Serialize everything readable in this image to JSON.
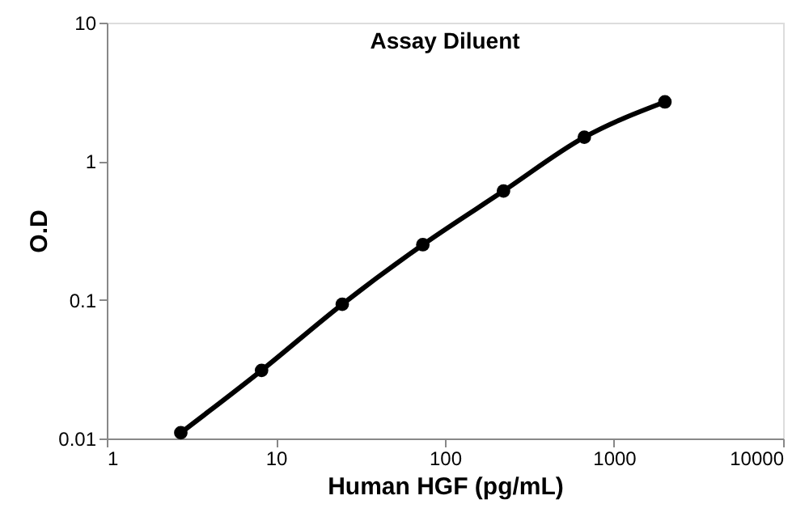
{
  "chart_data": {
    "type": "line",
    "title": "Assay Diluent",
    "xlabel": "Human HGF (pg/mL)",
    "ylabel": "O.D",
    "x": [
      2.74,
      8.23,
      24.7,
      74,
      222,
      667,
      2000
    ],
    "series": [
      {
        "color": "#000000",
        "values": [
          0.011,
          0.031,
          0.093,
          0.25,
          0.61,
          1.49,
          2.68
        ]
      }
    ],
    "log": "xy",
    "xlim": [
      1,
      10000
    ],
    "xticks": [
      1,
      10,
      100,
      1000,
      10000
    ],
    "ylim": [
      0.01,
      10
    ],
    "yticks": [
      0.01,
      0.1,
      1,
      10
    ],
    "marker": "circle",
    "line_style": "solid",
    "grid": false
  }
}
